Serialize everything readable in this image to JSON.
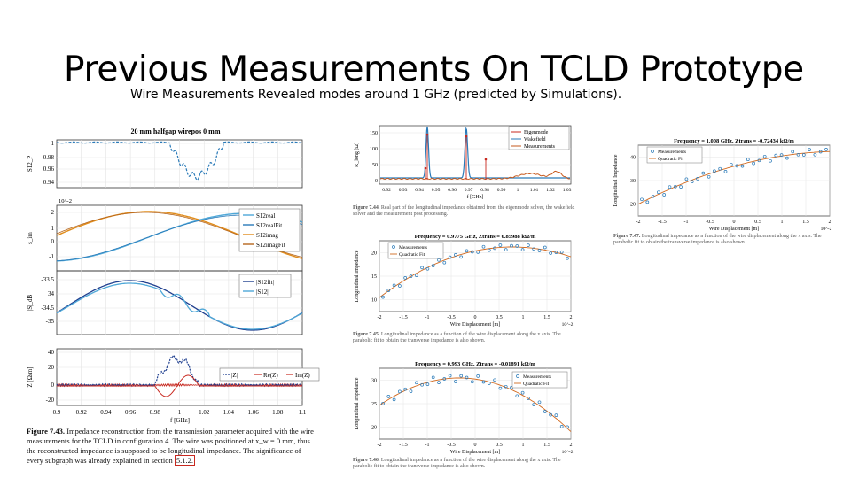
{
  "slide": {
    "title": "Previous Measurements On TCLD Prototype",
    "subtitle": "Wire Measurements Revealed modes around  1 GHz (predicted by Simulations)."
  },
  "left_figure": {
    "title": "20 mm halfgap wirepos 0 mm",
    "subplots": [
      {
        "ylabel": "S12_P",
        "yticks": [
          "1",
          "0.98",
          "0.96",
          "0.94"
        ]
      },
      {
        "ylabel": "s_im",
        "exp": "10^-2",
        "yticks": [
          "2",
          "1",
          "0",
          "-1"
        ],
        "legend": [
          "S12real",
          "S12realFit",
          "S12imag",
          "S12imagFit"
        ]
      },
      {
        "ylabel": "|S|_dB",
        "yticks": [
          "-33.5",
          "34",
          "-34.5",
          "-35"
        ],
        "legend": [
          "|S12fit|",
          "|S12|"
        ]
      },
      {
        "ylabel": "Z [Ω/m]",
        "yticks": [
          "40",
          "20",
          "0",
          "-20"
        ],
        "legend": [
          "|Z|",
          "Re(Z)",
          "Im(Z)"
        ]
      }
    ],
    "xlabel": "f [GHz]",
    "xticks": [
      "0.9",
      "0.92",
      "0.94",
      "0.96",
      "0.98",
      "1",
      "1.02",
      "1.04",
      "1.06",
      "1.08",
      "1.1"
    ],
    "caption": {
      "label": "Figure 7.43.",
      "text": "Impedance reconstruction from the transmission parameter acquired with the wire measurements for the TCLD in configuration 4. The wire was positioned at x_w = 0 mm, thus the reconstructed impedance is supposed to be longitudinal impedance. The significance of every subgraph was already explained in section",
      "ref": "5.1.2."
    },
    "colors": {
      "blue": "#2a7ab8",
      "light_blue": "#4fa8d8",
      "orange": "#e08c1a",
      "dark_orange": "#b5651d",
      "navy": "#1f3f8f",
      "red": "#c8281f"
    }
  },
  "mid_top_figure": {
    "ylabel": "R_long [Ω]",
    "yticks": [
      "150",
      "100",
      "50",
      "0"
    ],
    "xticks": [
      "0.92",
      "0.93",
      "0.94",
      "0.95",
      "0.96",
      "0.97",
      "0.98",
      "0.99",
      "1",
      "1.01",
      "1.02",
      "1.03"
    ],
    "xlabel": "f [GHz]",
    "legend": [
      "Eigenmode",
      "Wakefield",
      "Measurements"
    ],
    "caption": {
      "label": "Figure 7.44.",
      "text": "Real part of the longitudinal impedance obtained from the eigenmode solver, the wakefield solver and the measurement post processing."
    }
  },
  "mid_middle_figure": {
    "title": "Frequency = 0.9775 GHz, Ztrans = 0.85988 kΩ/m",
    "ylabel": "Longitudinal Impedance",
    "yticks": [
      "20",
      "15",
      "10"
    ],
    "xticks": [
      "-2",
      "-1.5",
      "-1",
      "-0.5",
      "0",
      "0.5",
      "1",
      "1.5",
      "2"
    ],
    "xlabel": "Wire Displacement [m]",
    "xexp": "10^-2",
    "legend": [
      "Measurements",
      "Quadratic Fit"
    ],
    "caption": {
      "label": "Figure 7.45.",
      "text": "Longitudinal impedance as a function of the wire displacement along the x axis. The parabolic fit to obtain the transverse impedance is also shown."
    }
  },
  "mid_bottom_figure": {
    "title": "Frequency = 0.993 GHz, Ztrans = -0.01891 kΩ/m",
    "ylabel": "Longitudinal Impedance",
    "yticks": [
      "30",
      "25",
      "20"
    ],
    "xticks": [
      "-2",
      "-1.5",
      "-1",
      "-0.5",
      "0",
      "0.5",
      "1",
      "1.5",
      "2"
    ],
    "xlabel": "Wire Displacement [m]",
    "xexp": "10^-2",
    "legend": [
      "Measurements",
      "Quadratic Fit"
    ],
    "caption": {
      "label": "Figure 7.46.",
      "text": "Longitudinal impedance as a function of the wire displacement along the x axis. The parabolic fit to obtain the transverse impedance is also shown."
    }
  },
  "right_figure": {
    "title": "Frequency = 1.008 GHz, Ztrans = -0.72434 kΩ/m",
    "ylabel": "Longitudinal Impedance",
    "yticks": [
      "40",
      "30",
      "20"
    ],
    "xticks": [
      "-2",
      "-1.5",
      "-1",
      "-0.5",
      "0",
      "0.5",
      "1",
      "1.5",
      "2"
    ],
    "xlabel": "Wire Displacement [m]",
    "xexp": "10^-2",
    "legend": [
      "Measurements",
      "Quadratic Fit"
    ],
    "caption": {
      "label": "Figure 7.47.",
      "text": "Longitudinal impedance as a function of the wire displacement along the x axis. The parabolic fit to obtain the transverse impedance is also shown."
    }
  }
}
